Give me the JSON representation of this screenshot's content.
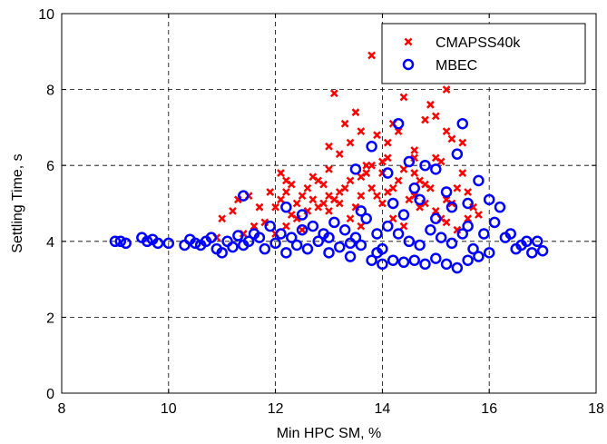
{
  "chart_data": {
    "type": "scatter",
    "xlabel": "Min HPC SM, %",
    "ylabel": "Settling Time, s",
    "xlim": [
      8,
      18
    ],
    "ylim": [
      0,
      10
    ],
    "xticks": [
      8,
      10,
      12,
      14,
      16,
      18
    ],
    "yticks": [
      0,
      2,
      4,
      6,
      8,
      10
    ],
    "grid": true,
    "legend_position": "top-right",
    "series": [
      {
        "name": "CMAPSS40k",
        "marker": "x",
        "color": "#ff0000",
        "points": [
          [
            11.3,
            5.1
          ],
          [
            11.5,
            5.2
          ],
          [
            11.0,
            4.6
          ],
          [
            11.2,
            4.8
          ],
          [
            11.6,
            4.4
          ],
          [
            11.4,
            4.2
          ],
          [
            10.9,
            4.1
          ],
          [
            11.8,
            4.5
          ],
          [
            12.0,
            4.9
          ],
          [
            12.2,
            5.3
          ],
          [
            12.4,
            5.0
          ],
          [
            12.6,
            5.4
          ],
          [
            12.8,
            5.6
          ],
          [
            12.1,
            5.8
          ],
          [
            12.3,
            4.7
          ],
          [
            12.5,
            4.3
          ],
          [
            12.7,
            5.1
          ],
          [
            12.9,
            5.5
          ],
          [
            13.0,
            5.9
          ],
          [
            13.2,
            6.3
          ],
          [
            13.1,
            7.9
          ],
          [
            13.3,
            7.1
          ],
          [
            13.4,
            6.6
          ],
          [
            13.5,
            7.4
          ],
          [
            13.6,
            5.2
          ],
          [
            13.7,
            6.0
          ],
          [
            13.8,
            8.9
          ],
          [
            13.9,
            6.8
          ],
          [
            13.0,
            4.8
          ],
          [
            13.2,
            5.0
          ],
          [
            13.4,
            4.6
          ],
          [
            13.6,
            4.4
          ],
          [
            13.8,
            5.4
          ],
          [
            14.0,
            5.8
          ],
          [
            14.1,
            6.2
          ],
          [
            14.2,
            7.1
          ],
          [
            14.3,
            6.9
          ],
          [
            14.4,
            7.8
          ],
          [
            14.5,
            8.3
          ],
          [
            14.6,
            6.4
          ],
          [
            14.7,
            5.6
          ],
          [
            14.8,
            7.2
          ],
          [
            14.9,
            7.6
          ],
          [
            15.0,
            7.3
          ],
          [
            15.1,
            6.1
          ],
          [
            15.2,
            8.0
          ],
          [
            15.3,
            6.7
          ],
          [
            15.4,
            5.4
          ],
          [
            15.5,
            6.6
          ],
          [
            15.6,
            5.3
          ],
          [
            15.7,
            4.9
          ],
          [
            15.8,
            4.7
          ],
          [
            14.0,
            5.0
          ],
          [
            14.2,
            4.6
          ],
          [
            14.4,
            4.4
          ],
          [
            14.6,
            5.2
          ],
          [
            14.8,
            5.0
          ],
          [
            15.0,
            4.8
          ],
          [
            15.2,
            4.5
          ],
          [
            15.4,
            4.3
          ],
          [
            12.0,
            4.2
          ],
          [
            12.4,
            4.6
          ],
          [
            12.8,
            4.9
          ],
          [
            13.2,
            5.3
          ],
          [
            13.6,
            5.7
          ],
          [
            14.0,
            6.1
          ],
          [
            14.4,
            5.9
          ],
          [
            14.8,
            5.5
          ],
          [
            15.2,
            5.1
          ],
          [
            15.6,
            4.6
          ],
          [
            11.7,
            4.9
          ],
          [
            12.1,
            5.1
          ],
          [
            12.5,
            5.2
          ],
          [
            12.9,
            5.0
          ],
          [
            13.3,
            5.4
          ],
          [
            13.7,
            5.8
          ],
          [
            14.1,
            5.3
          ],
          [
            14.5,
            5.1
          ],
          [
            14.9,
            5.4
          ],
          [
            15.3,
            5.0
          ],
          [
            12.2,
            4.4
          ],
          [
            12.6,
            4.8
          ],
          [
            13.0,
            5.2
          ],
          [
            13.4,
            5.6
          ],
          [
            13.8,
            6.0
          ],
          [
            14.2,
            5.4
          ],
          [
            14.6,
            5.8
          ],
          [
            15.0,
            6.2
          ],
          [
            11.9,
            5.3
          ],
          [
            12.3,
            5.5
          ],
          [
            12.7,
            5.7
          ],
          [
            13.1,
            5.1
          ],
          [
            13.5,
            4.9
          ],
          [
            13.9,
            5.2
          ],
          [
            14.3,
            5.6
          ],
          [
            14.7,
            4.9
          ],
          [
            15.1,
            4.6
          ],
          [
            15.5,
            5.8
          ],
          [
            12.2,
            5.6
          ],
          [
            13.0,
            6.5
          ],
          [
            13.6,
            6.9
          ],
          [
            14.1,
            6.6
          ],
          [
            14.6,
            6.2
          ],
          [
            15.2,
            6.9
          ]
        ]
      },
      {
        "name": "MBEC",
        "marker": "o",
        "color": "#0000ff",
        "points": [
          [
            9.0,
            4.0
          ],
          [
            9.1,
            4.0
          ],
          [
            9.2,
            3.95
          ],
          [
            9.5,
            4.1
          ],
          [
            9.6,
            4.0
          ],
          [
            9.7,
            4.05
          ],
          [
            9.8,
            3.95
          ],
          [
            10.0,
            3.95
          ],
          [
            10.3,
            3.9
          ],
          [
            10.4,
            4.05
          ],
          [
            10.5,
            3.95
          ],
          [
            10.6,
            3.9
          ],
          [
            10.7,
            4.0
          ],
          [
            10.8,
            4.1
          ],
          [
            10.9,
            3.8
          ],
          [
            11.0,
            3.7
          ],
          [
            11.1,
            4.0
          ],
          [
            11.2,
            3.85
          ],
          [
            11.3,
            4.15
          ],
          [
            11.4,
            3.9
          ],
          [
            11.5,
            4.0
          ],
          [
            11.4,
            5.2
          ],
          [
            11.6,
            4.2
          ],
          [
            11.8,
            3.8
          ],
          [
            12.0,
            3.95
          ],
          [
            12.2,
            3.7
          ],
          [
            12.3,
            4.1
          ],
          [
            12.4,
            3.9
          ],
          [
            12.6,
            3.8
          ],
          [
            12.8,
            4.0
          ],
          [
            12.2,
            4.9
          ],
          [
            12.5,
            4.7
          ],
          [
            13.0,
            4.1
          ],
          [
            13.2,
            3.85
          ],
          [
            13.4,
            3.95
          ],
          [
            13.5,
            5.9
          ],
          [
            13.6,
            3.9
          ],
          [
            13.8,
            3.5
          ],
          [
            13.9,
            4.2
          ],
          [
            14.0,
            3.8
          ],
          [
            14.1,
            5.8
          ],
          [
            13.8,
            6.5
          ],
          [
            14.3,
            7.1
          ],
          [
            14.5,
            6.1
          ],
          [
            14.6,
            5.4
          ],
          [
            14.7,
            5.1
          ],
          [
            14.8,
            6.0
          ],
          [
            15.0,
            5.9
          ],
          [
            15.2,
            5.3
          ],
          [
            15.3,
            4.9
          ],
          [
            15.4,
            6.3
          ],
          [
            15.5,
            7.1
          ],
          [
            15.6,
            5.0
          ],
          [
            15.8,
            5.6
          ],
          [
            15.9,
            4.2
          ],
          [
            16.0,
            5.1
          ],
          [
            16.1,
            4.5
          ],
          [
            16.2,
            4.9
          ],
          [
            16.3,
            4.1
          ],
          [
            16.5,
            3.8
          ],
          [
            16.6,
            3.9
          ],
          [
            16.8,
            3.7
          ],
          [
            16.9,
            4.0
          ],
          [
            17.0,
            3.75
          ],
          [
            14.0,
            3.4
          ],
          [
            14.2,
            3.5
          ],
          [
            14.4,
            3.45
          ],
          [
            14.6,
            3.5
          ],
          [
            14.8,
            3.4
          ],
          [
            15.0,
            3.55
          ],
          [
            15.2,
            3.4
          ],
          [
            15.4,
            3.3
          ],
          [
            15.6,
            3.5
          ],
          [
            15.8,
            3.6
          ],
          [
            16.0,
            3.7
          ],
          [
            14.1,
            4.4
          ],
          [
            14.3,
            4.2
          ],
          [
            14.5,
            4.0
          ],
          [
            14.7,
            3.9
          ],
          [
            14.9,
            4.3
          ],
          [
            15.1,
            4.1
          ],
          [
            15.3,
            3.95
          ],
          [
            15.5,
            4.2
          ],
          [
            15.7,
            3.8
          ],
          [
            13.1,
            4.5
          ],
          [
            13.3,
            4.3
          ],
          [
            13.5,
            4.1
          ],
          [
            13.7,
            4.6
          ],
          [
            13.9,
            3.7
          ],
          [
            12.9,
            4.2
          ],
          [
            12.7,
            4.4
          ],
          [
            12.5,
            4.3
          ],
          [
            12.1,
            4.2
          ],
          [
            11.9,
            4.4
          ],
          [
            11.7,
            4.1
          ],
          [
            13.6,
            4.8
          ],
          [
            14.2,
            5.0
          ],
          [
            14.4,
            4.7
          ],
          [
            15.0,
            4.6
          ],
          [
            15.6,
            4.4
          ],
          [
            16.4,
            4.2
          ],
          [
            16.7,
            4.0
          ],
          [
            13.0,
            3.7
          ],
          [
            13.4,
            3.6
          ]
        ]
      }
    ]
  }
}
